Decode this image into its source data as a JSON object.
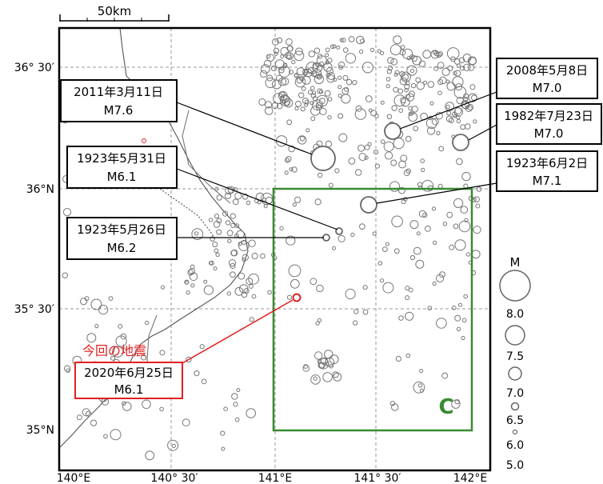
{
  "scale_bar": {
    "label": "50km"
  },
  "lat_labels": [
    "36° 30′",
    "36°N",
    "35° 30′",
    "35°N"
  ],
  "lon_labels": [
    "140°E",
    "140° 30′",
    "141°E",
    "141° 30′",
    "142°E"
  ],
  "region_label": "C",
  "current_event": {
    "note": "今回の地震",
    "date": "2020年6月25日",
    "mag": "M6.1",
    "color": "#e02020"
  },
  "callouts": [
    {
      "date": "2011年3月11日",
      "mag": "M7.6"
    },
    {
      "date": "1923年5月31日",
      "mag": "M6.1"
    },
    {
      "date": "1923年5月26日",
      "mag": "M6.2"
    },
    {
      "date": "2008年5月8日",
      "mag": "M7.0"
    },
    {
      "date": "1982年7月23日",
      "mag": "M7.0"
    },
    {
      "date": "1923年6月2日",
      "mag": "M7.1"
    }
  ],
  "magnitude_legend": {
    "title": "M",
    "values": [
      "8.0",
      "7.5",
      "7.0",
      "6.5",
      "6.0",
      "5.0"
    ]
  },
  "colors": {
    "region_box": "#3a8a32",
    "frame": "#000000",
    "grid": "#9a9a9a",
    "event": "#666666"
  }
}
